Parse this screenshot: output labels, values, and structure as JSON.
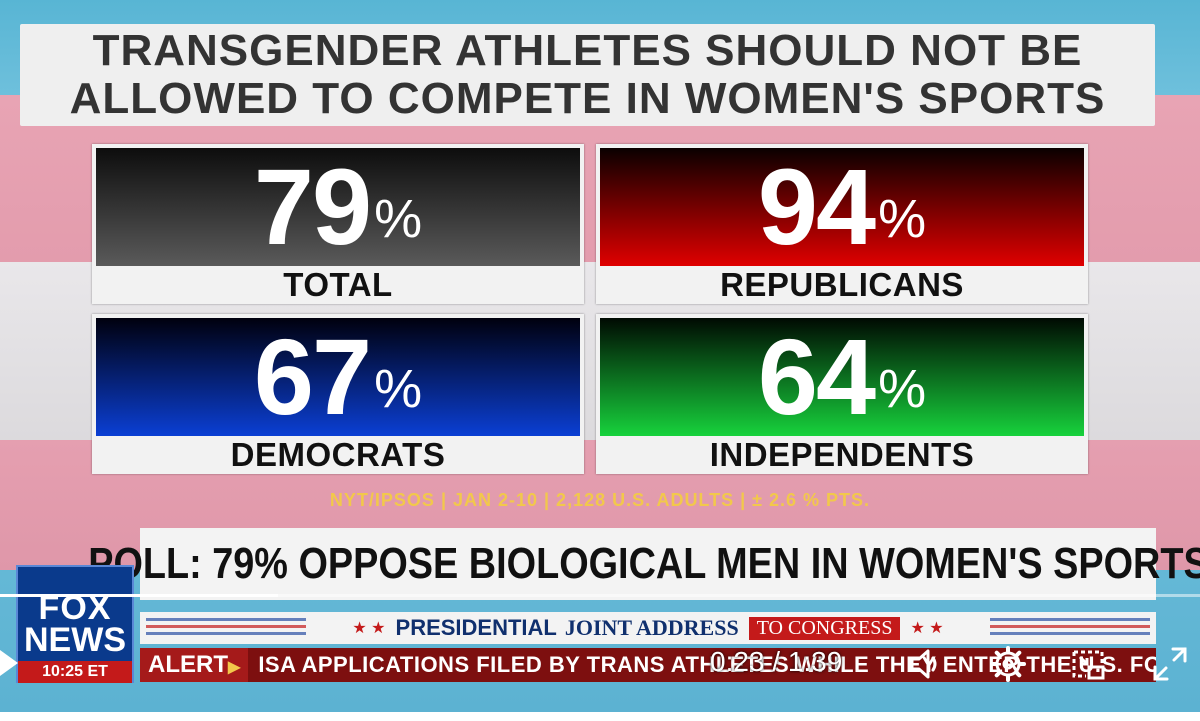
{
  "headline": {
    "line1": "TRANSGENDER ATHLETES SHOULD NOT BE",
    "line2": "ALLOWED TO COMPETE IN WOMEN'S SPORTS"
  },
  "tiles": [
    {
      "value": "79",
      "unit": "%",
      "label": "TOTAL",
      "color": "#5a5a5a"
    },
    {
      "value": "94",
      "unit": "%",
      "label": "REPUBLICANS",
      "color": "#e00000"
    },
    {
      "value": "67",
      "unit": "%",
      "label": "DEMOCRATS",
      "color": "#0b3fd4"
    },
    {
      "value": "64",
      "unit": "%",
      "label": "INDEPENDENTS",
      "color": "#17d23c"
    }
  ],
  "source": "NYT/IPSOS | JAN 2-10 | 2,128 U.S. ADULTS | ± 2.6 % PTS.",
  "lower_third": "POLL: 79% OPPOSE BIOLOGICAL MEN IN WOMEN'S SPORTS",
  "logo": {
    "line1": "FOX",
    "line2": "NEWS",
    "time": "10:25 ET"
  },
  "banner": {
    "part1": "PRESIDENTIAL",
    "part2": "JOINT ADDRESS",
    "part3": "TO CONGRESS",
    "stars": "★ ★"
  },
  "alert": {
    "tag": "ALERT",
    "arrow": "▶",
    "crawl": "ISA APPLICATIONS FILED BY TRANS ATHLETES WHILE THEY ENTER THE U.S. FO"
  },
  "player": {
    "current_time": "0:23",
    "duration": "1:39",
    "time_display": "0:23 / 1:39",
    "progress_fraction": 0.232,
    "icons": [
      "play-icon",
      "volume-icon",
      "settings-icon",
      "pip-icon",
      "fullscreen-icon"
    ]
  }
}
